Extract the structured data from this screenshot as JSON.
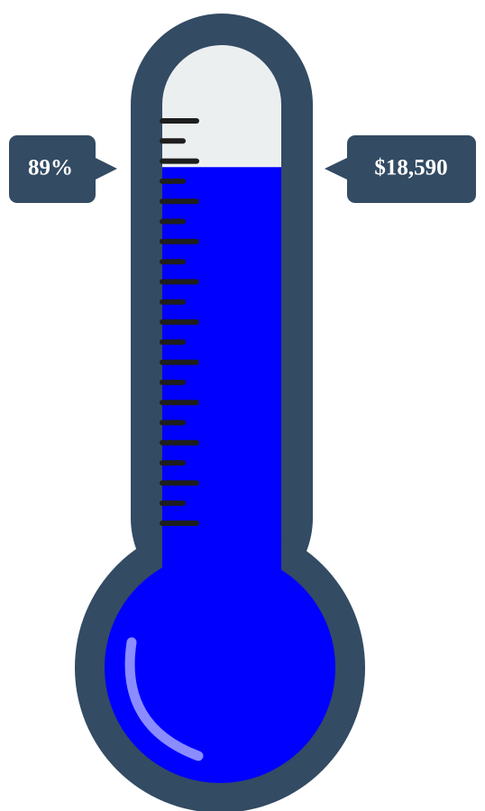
{
  "progress": {
    "value": 89,
    "label": "89%"
  },
  "amount": "$18,590"
}
